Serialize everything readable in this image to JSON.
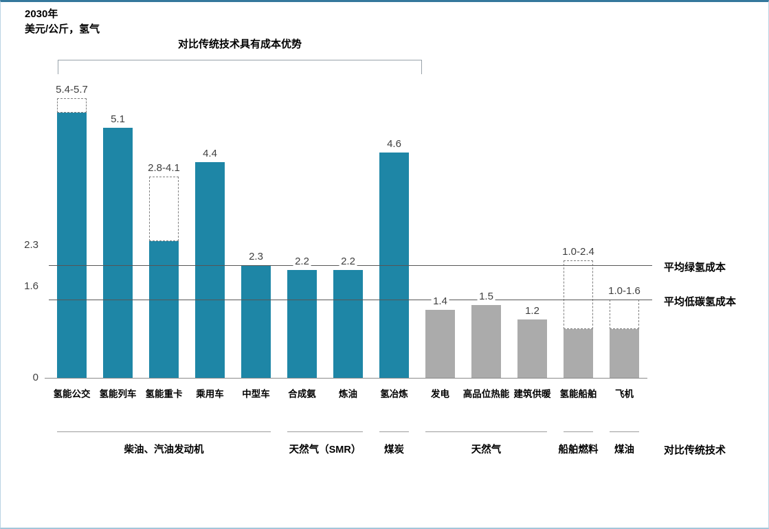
{
  "frame": {
    "top_border_color": "#35789C",
    "side_border_color": "#B9D3E3"
  },
  "chart_data": {
    "type": "bar",
    "title": "2030年",
    "unit_label": "美元/公斤，氢气",
    "advantage_bracket_label": "对比传统技术具有成本优势",
    "y_axis": {
      "ticks": [
        "2.3",
        "1.6",
        "0"
      ],
      "tick_values": [
        2.3,
        1.6,
        0
      ],
      "ylim": [
        0,
        6.3
      ],
      "grid": false
    },
    "colors": {
      "advantage_bar": "#1E86A6",
      "regular_bar": "#ABABAB"
    },
    "bars": [
      {
        "category": "氢能公交",
        "value_label": "5.4-5.7",
        "value": 5.4,
        "value_max": 5.7,
        "advantage": true
      },
      {
        "category": "氢能列车",
        "value_label": "5.1",
        "value": 5.1,
        "advantage": true
      },
      {
        "category": "氢能重卡",
        "value_label": "2.8-4.1",
        "value": 2.8,
        "value_max": 4.1,
        "advantage": true
      },
      {
        "category": "乘用车",
        "value_label": "4.4",
        "value": 4.4,
        "advantage": true
      },
      {
        "category": "中型车",
        "value_label": "2.3",
        "value": 2.3,
        "advantage": true
      },
      {
        "category": "合成氨",
        "value_label": "2.2",
        "value": 2.2,
        "advantage": true
      },
      {
        "category": "炼油",
        "value_label": "2.2",
        "value": 2.2,
        "advantage": true
      },
      {
        "category": "氢冶炼",
        "value_label": "4.6",
        "value": 4.6,
        "advantage": true
      },
      {
        "category": "发电",
        "value_label": "1.4",
        "value": 1.4,
        "advantage": false
      },
      {
        "category": "高品位热能",
        "value_label": "1.5",
        "value": 1.5,
        "advantage": false
      },
      {
        "category": "建筑供暖",
        "value_label": "1.2",
        "value": 1.2,
        "advantage": false
      },
      {
        "category": "氢能船舶",
        "value_label": "1.0-2.4",
        "value": 1.0,
        "value_max": 2.4,
        "advantage": false
      },
      {
        "category": "飞机",
        "value_label": "1.0-1.6",
        "value": 1.0,
        "value_max": 1.6,
        "advantage": false
      }
    ],
    "reference_lines": [
      {
        "value": 2.3,
        "label": "平均绿氢成本"
      },
      {
        "value": 1.6,
        "label": "平均低碳氢成本"
      }
    ],
    "comparison_groups": [
      {
        "label": "柴油、汽油发动机",
        "from": 0,
        "to": 4
      },
      {
        "label": "天然气（SMR）",
        "from": 5,
        "to": 6
      },
      {
        "label": "煤炭",
        "from": 7,
        "to": 7
      },
      {
        "label": "天然气",
        "from": 8,
        "to": 10
      },
      {
        "label": "船舶燃料",
        "from": 11,
        "to": 11
      },
      {
        "label": "煤油",
        "from": 12,
        "to": 12
      }
    ],
    "comparison_title": "对比传统技术"
  }
}
